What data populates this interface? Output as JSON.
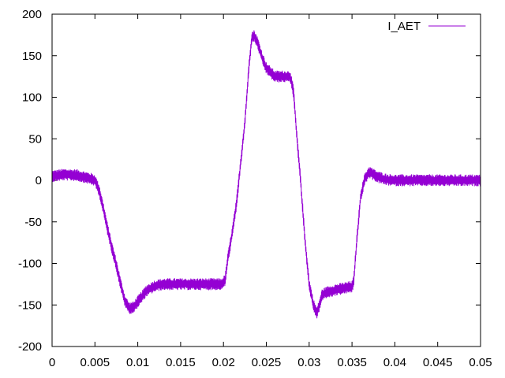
{
  "chart_data": {
    "type": "line",
    "title": "",
    "xlabel": "",
    "ylabel": "",
    "xlim": [
      0,
      0.05
    ],
    "ylim": [
      -200,
      200
    ],
    "xticks": [
      0,
      0.005,
      0.01,
      0.015,
      0.02,
      0.025,
      0.03,
      0.035,
      0.04,
      0.045,
      0.05
    ],
    "xtick_labels": [
      "0",
      "0.005",
      "0.01",
      "0.015",
      "0.02",
      "0.025",
      "0.03",
      "0.035",
      "0.04",
      "0.045",
      "0.05"
    ],
    "yticks": [
      -200,
      -150,
      -100,
      -50,
      0,
      50,
      100,
      150,
      200
    ],
    "ytick_labels": [
      "-200",
      "-150",
      "-100",
      "-50",
      "0",
      "50",
      "100",
      "150",
      "200"
    ],
    "grid": false,
    "legend_position": "top-right",
    "series": [
      {
        "name": "I_AET",
        "color": "#9400d3",
        "x": [
          0,
          0.0015,
          0.003,
          0.0045,
          0.005,
          0.0055,
          0.006,
          0.0065,
          0.007,
          0.0075,
          0.008,
          0.0085,
          0.009,
          0.0095,
          0.01,
          0.0105,
          0.011,
          0.012,
          0.013,
          0.014,
          0.015,
          0.016,
          0.017,
          0.018,
          0.019,
          0.0198,
          0.0202,
          0.0205,
          0.021,
          0.0215,
          0.022,
          0.0225,
          0.023,
          0.0233,
          0.0236,
          0.024,
          0.0245,
          0.025,
          0.026,
          0.027,
          0.0278,
          0.0282,
          0.0285,
          0.029,
          0.0295,
          0.03,
          0.0305,
          0.0309,
          0.0312,
          0.0315,
          0.032,
          0.033,
          0.034,
          0.035,
          0.0352,
          0.0355,
          0.036,
          0.0365,
          0.037,
          0.038,
          0.039,
          0.04,
          0.042,
          0.044,
          0.046,
          0.048,
          0.05
        ],
        "values": [
          5,
          7,
          6,
          2,
          0,
          -12,
          -35,
          -60,
          -82,
          -102,
          -125,
          -145,
          -154,
          -153,
          -146,
          -140,
          -133,
          -127,
          -125,
          -125,
          -125,
          -125,
          -125,
          -125,
          -125,
          -125,
          -120,
          -95,
          -65,
          -30,
          20,
          70,
          140,
          172,
          174,
          165,
          148,
          135,
          125,
          125,
          125,
          105,
          60,
          0,
          -70,
          -125,
          -150,
          -160,
          -150,
          -138,
          -135,
          -132,
          -130,
          -128,
          -122,
          -80,
          -20,
          2,
          10,
          4,
          1,
          0,
          0,
          0,
          0,
          0,
          0
        ]
      }
    ]
  }
}
